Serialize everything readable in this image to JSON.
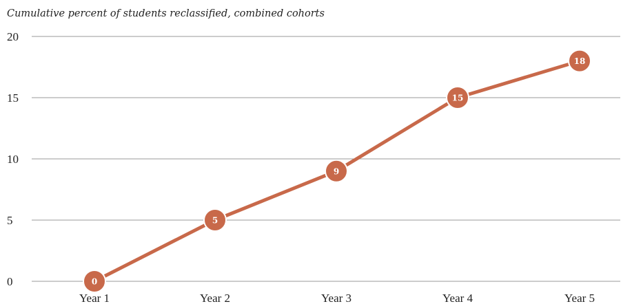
{
  "chart_data": {
    "type": "line",
    "title": "Cumulative percent of students reclassified, combined cohorts",
    "xlabel": "",
    "ylabel": "",
    "categories": [
      "Year 1",
      "Year 2",
      "Year 3",
      "Year 4",
      "Year 5"
    ],
    "series": [
      {
        "values": [
          0,
          5,
          9,
          15,
          18
        ],
        "data_labels": [
          "0",
          "5",
          "9",
          "15",
          "18"
        ]
      }
    ],
    "ylim": [
      0,
      20
    ],
    "y_ticks": [
      0,
      5,
      10,
      15,
      20
    ],
    "y_tick_labels": [
      "0",
      "5",
      "10",
      "15",
      "20"
    ],
    "grid": true,
    "legend": "none",
    "colors": {
      "series": "#c8694a",
      "marker_stroke": "#ffffff",
      "grid": "#9a9a9a",
      "text": "#222222"
    }
  }
}
